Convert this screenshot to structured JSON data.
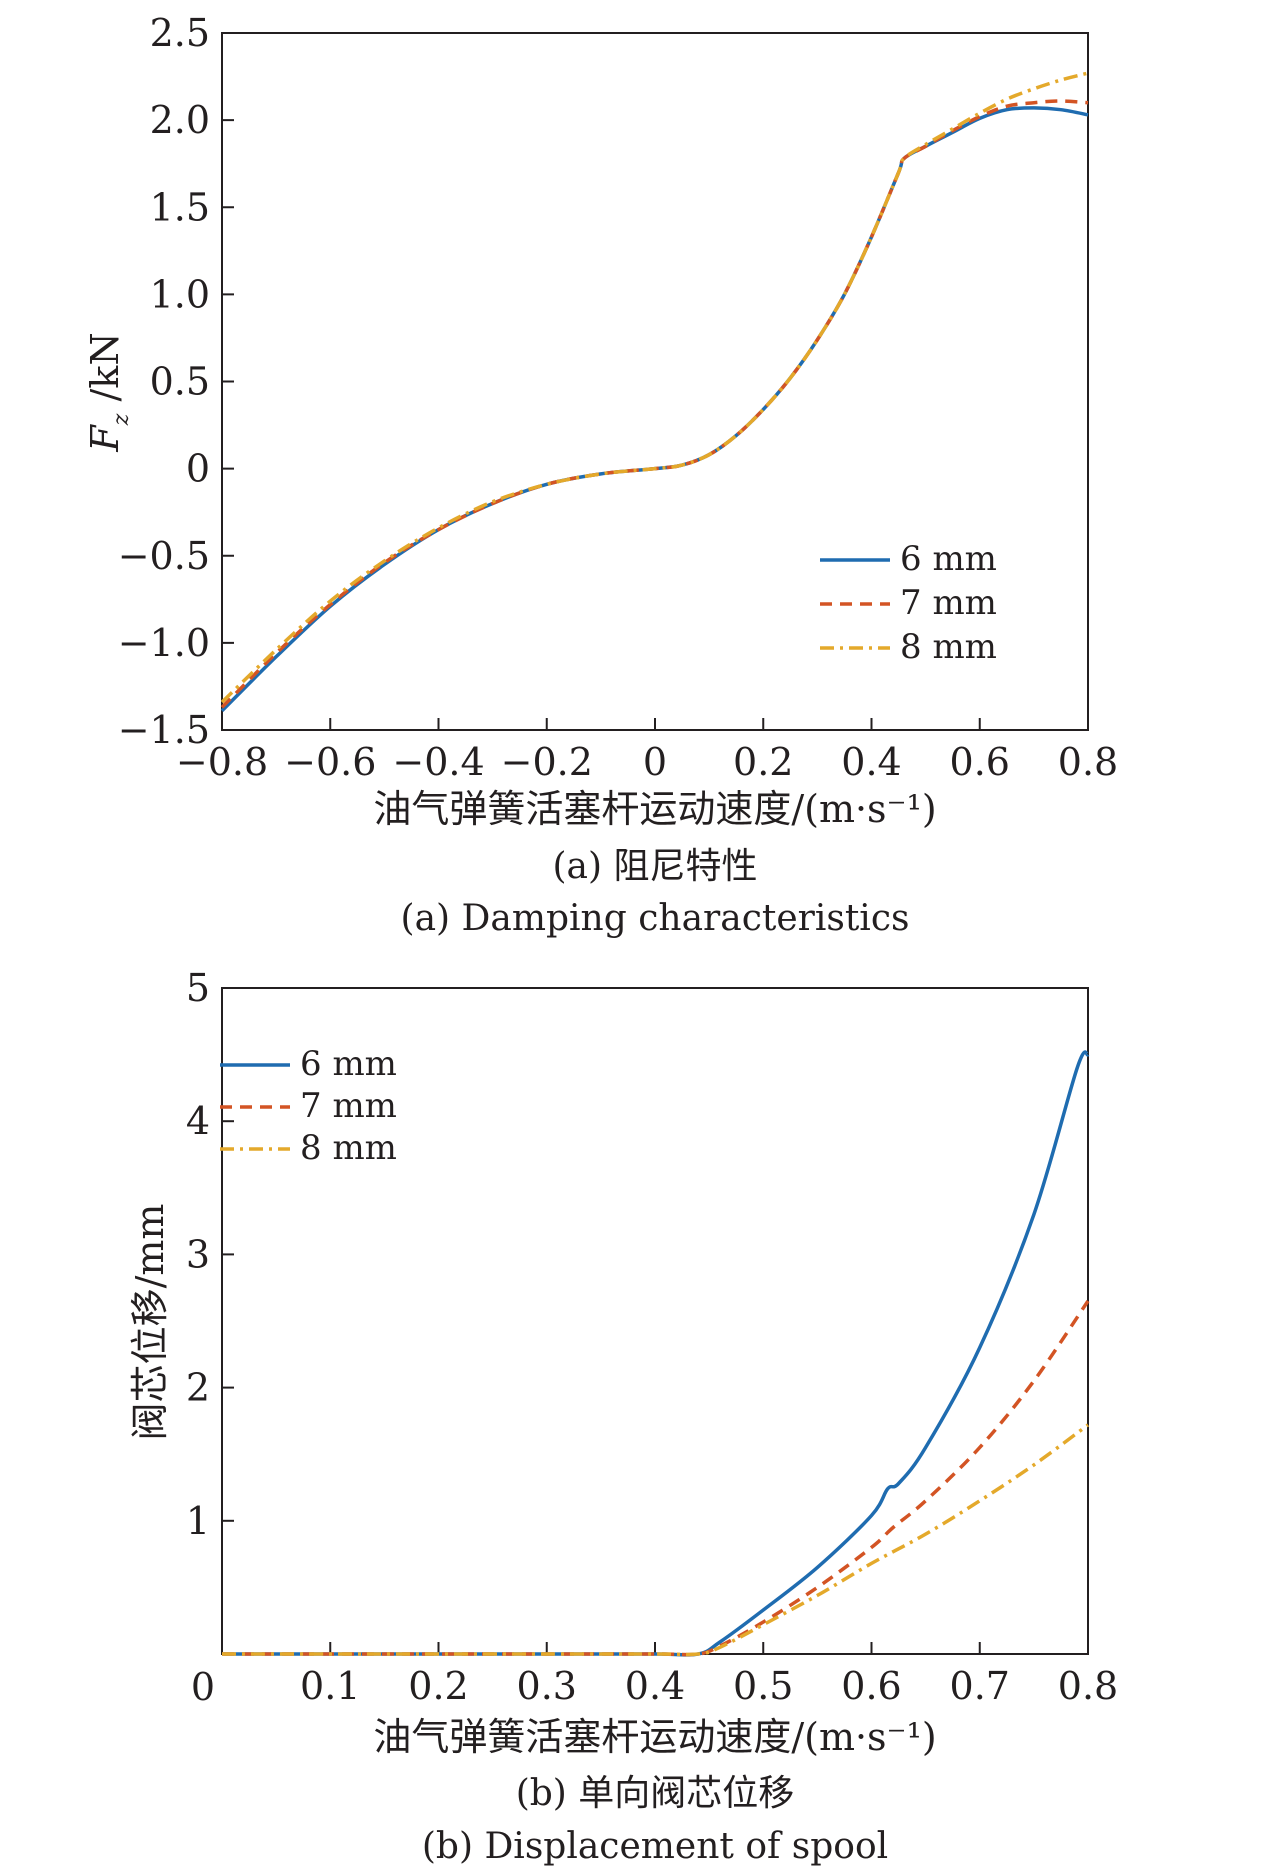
{
  "chart_data": [
    {
      "type": "line",
      "title": "",
      "xlabel": "油气弹簧活塞杆运动速度/(m·s⁻¹)",
      "ylabel": "Fz /kN",
      "caption_cn": "(a) 阻尼特性",
      "caption_en": "(a) Damping characteristics",
      "xlim": [
        -0.8,
        0.8
      ],
      "ylim": [
        -1.5,
        2.5
      ],
      "xticks": [
        "−0.8",
        "−0.6",
        "−0.4",
        "−0.2",
        "0",
        "0.2",
        "0.4",
        "0.6",
        "0.8"
      ],
      "xtick_values": [
        -0.8,
        -0.6,
        -0.4,
        -0.2,
        0,
        0.2,
        0.4,
        0.6,
        0.8
      ],
      "yticks": [
        "−1.5",
        "−1.0",
        "−0.5",
        "0",
        "0.5",
        "1.0",
        "1.5",
        "2.0",
        "2.5"
      ],
      "ytick_values": [
        -1.5,
        -1.0,
        -0.5,
        0,
        0.5,
        1.0,
        1.5,
        2.0,
        2.5
      ],
      "legend_position": "bottom-right",
      "grid": false,
      "x": [
        -0.8,
        -0.7,
        -0.6,
        -0.5,
        -0.4,
        -0.3,
        -0.2,
        -0.1,
        0,
        0.05,
        0.1,
        0.15,
        0.2,
        0.25,
        0.3,
        0.35,
        0.4,
        0.45,
        0.46,
        0.5,
        0.55,
        0.6,
        0.65,
        0.7,
        0.75,
        0.8
      ],
      "series": [
        {
          "name": "6 mm",
          "color": "#1f6cb0",
          "dash": "solid",
          "values": [
            -1.39,
            -1.08,
            -0.79,
            -0.55,
            -0.35,
            -0.2,
            -0.09,
            -0.03,
            0.0,
            0.02,
            0.08,
            0.19,
            0.34,
            0.52,
            0.74,
            1.0,
            1.33,
            1.7,
            1.78,
            1.85,
            1.93,
            2.01,
            2.06,
            2.07,
            2.06,
            2.03
          ]
        },
        {
          "name": "7 mm",
          "color": "#d35424",
          "dash": "12,8",
          "values": [
            -1.37,
            -1.06,
            -0.78,
            -0.54,
            -0.35,
            -0.2,
            -0.09,
            -0.03,
            0.0,
            0.02,
            0.08,
            0.19,
            0.34,
            0.52,
            0.74,
            1.0,
            1.33,
            1.7,
            1.78,
            1.85,
            1.94,
            2.02,
            2.08,
            2.1,
            2.11,
            2.1
          ]
        },
        {
          "name": "8 mm",
          "color": "#e4a92b",
          "dash": "14,6,3,6",
          "values": [
            -1.34,
            -1.04,
            -0.76,
            -0.53,
            -0.34,
            -0.19,
            -0.09,
            -0.03,
            0.0,
            0.02,
            0.08,
            0.19,
            0.34,
            0.52,
            0.74,
            1.0,
            1.33,
            1.7,
            1.78,
            1.86,
            1.95,
            2.04,
            2.12,
            2.18,
            2.23,
            2.27
          ]
        }
      ]
    },
    {
      "type": "line",
      "title": "",
      "xlabel": "油气弹簧活塞杆运动速度/(m·s⁻¹)",
      "ylabel": "阀芯位移/mm",
      "caption_cn": "(b) 单向阀芯位移",
      "caption_en": "(b) Displacement of spool",
      "xlim": [
        0,
        0.8
      ],
      "ylim": [
        0,
        5
      ],
      "xticks": [
        "0",
        "0.1",
        "0.2",
        "0.3",
        "0.4",
        "0.5",
        "0.6",
        "0.7",
        "0.8"
      ],
      "xtick_values": [
        0,
        0.1,
        0.2,
        0.3,
        0.4,
        0.5,
        0.6,
        0.7,
        0.8
      ],
      "yticks": [
        "1",
        "2",
        "3",
        "4",
        "5"
      ],
      "ytick_values": [
        1,
        2,
        3,
        4,
        5
      ],
      "legend_position": "top-left",
      "grid": false,
      "series": [
        {
          "name": "6 mm",
          "color": "#1f6cb0",
          "dash": "solid",
          "x": [
            0,
            0.1,
            0.2,
            0.3,
            0.4,
            0.44,
            0.46,
            0.5,
            0.55,
            0.6,
            0.615,
            0.625,
            0.65,
            0.7,
            0.75,
            0.79,
            0.8
          ],
          "values": [
            0,
            0,
            0,
            0,
            0,
            0,
            0.09,
            0.33,
            0.65,
            1.04,
            1.24,
            1.28,
            1.55,
            2.3,
            3.3,
            4.4,
            4.5
          ]
        },
        {
          "name": "7 mm",
          "color": "#d35424",
          "dash": "12,8",
          "x": [
            0,
            0.1,
            0.2,
            0.3,
            0.4,
            0.44,
            0.46,
            0.5,
            0.55,
            0.6,
            0.62,
            0.65,
            0.7,
            0.75,
            0.8
          ],
          "values": [
            0,
            0,
            0,
            0,
            0,
            0,
            0.06,
            0.24,
            0.5,
            0.8,
            0.95,
            1.15,
            1.55,
            2.05,
            2.65
          ]
        },
        {
          "name": "8 mm",
          "color": "#e4a92b",
          "dash": "14,6,3,6",
          "x": [
            0,
            0.1,
            0.2,
            0.3,
            0.4,
            0.44,
            0.46,
            0.5,
            0.55,
            0.6,
            0.65,
            0.7,
            0.75,
            0.8
          ],
          "values": [
            0,
            0,
            0,
            0,
            0,
            0,
            0.05,
            0.22,
            0.44,
            0.68,
            0.9,
            1.15,
            1.42,
            1.72
          ]
        }
      ]
    }
  ]
}
